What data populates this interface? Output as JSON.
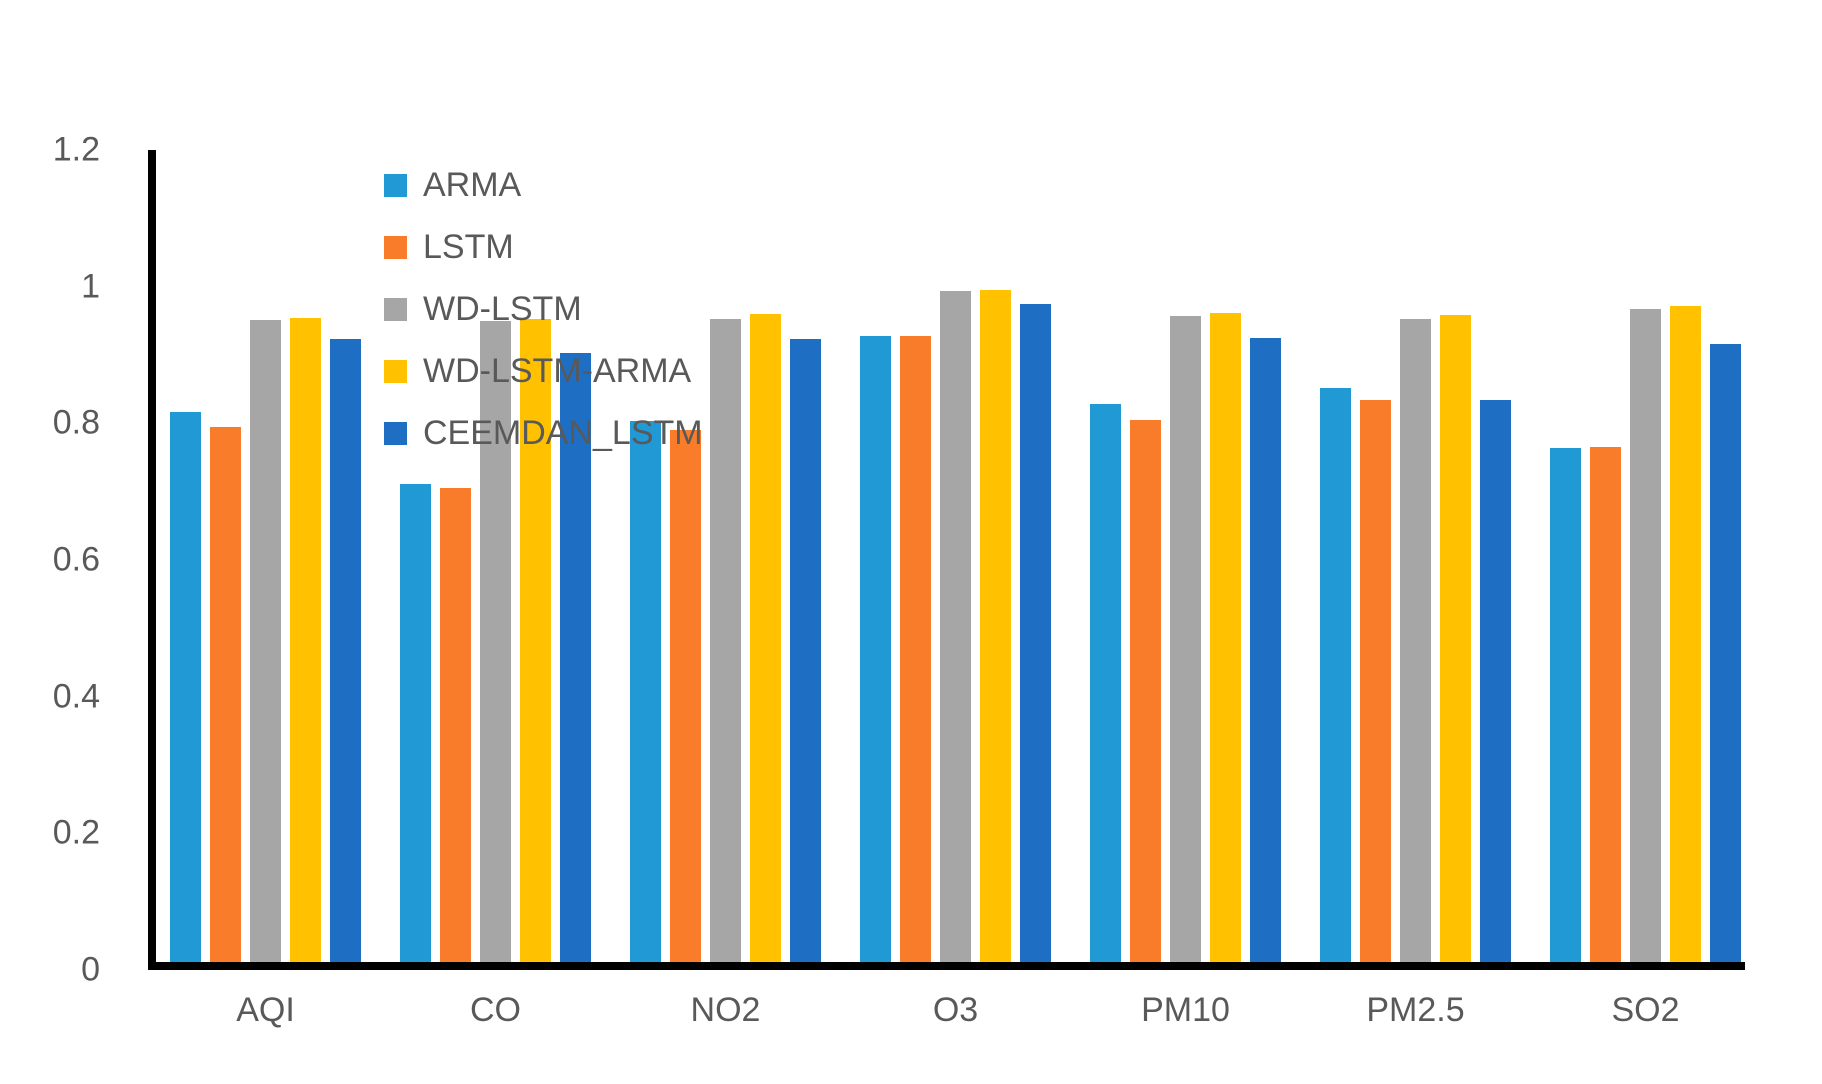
{
  "figure": {
    "background": "#ffffff",
    "axis_color": "#000000",
    "text_color": "#595959"
  },
  "chart_data": {
    "type": "bar",
    "title": "",
    "xlabel": "",
    "ylabel": "",
    "categories": [
      "AQI",
      "CO",
      "NO2",
      "O3",
      "PM10",
      "PM2.5",
      "SO2"
    ],
    "series": [
      {
        "name": "ARMA",
        "color": "#2099D5",
        "values": [
          0.813,
          0.706,
          0.799,
          0.925,
          0.824,
          0.849,
          0.76
        ]
      },
      {
        "name": "LSTM",
        "color": "#F87C2A",
        "values": [
          0.79,
          0.7,
          0.786,
          0.925,
          0.801,
          0.831,
          0.761
        ]
      },
      {
        "name": "WD-LSTM",
        "color": "#A6A6A6",
        "values": [
          0.949,
          0.948,
          0.951,
          0.991,
          0.954,
          0.951,
          0.965
        ]
      },
      {
        "name": "WD-LSTM-ARMA",
        "color": "#FFC100",
        "values": [
          0.952,
          0.951,
          0.958,
          0.993,
          0.959,
          0.956,
          0.969
        ]
      },
      {
        "name": "CEEMDAN_LSTM",
        "color": "#1E6FC4",
        "values": [
          0.92,
          0.9,
          0.92,
          0.973,
          0.922,
          0.831,
          0.913
        ]
      }
    ],
    "y_axis": {
      "min": 0,
      "max": 1.2,
      "step": 0.2,
      "tick_labels": [
        "0",
        "0.2",
        "0.4",
        "0.6",
        "0.8",
        "1",
        "1.2"
      ]
    },
    "legend_position": "top-left",
    "grid": false
  }
}
